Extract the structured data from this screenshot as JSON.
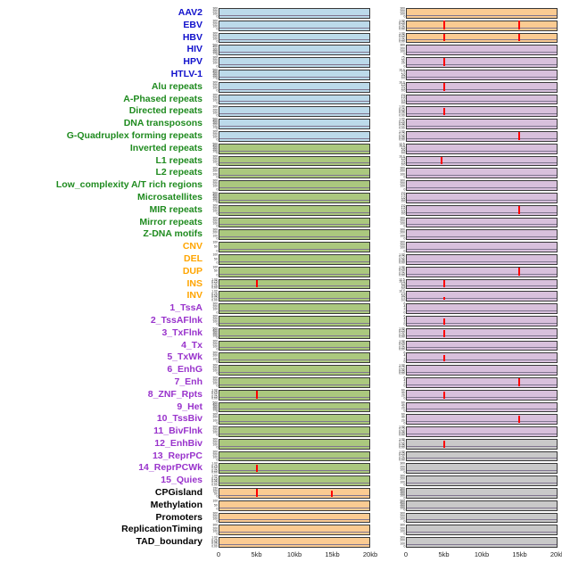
{
  "colors": {
    "label_virus": "#1111CC",
    "label_repeat": "#1F8B1F",
    "label_sv": "#FFA500",
    "label_chromatin": "#9933CC",
    "label_other": "#000000",
    "panel_blue": "#BCDAEA",
    "panel_green": "#ABC87E",
    "panel_orange": "#FBCB92",
    "panel_purple": "#D8C0DC",
    "panel_gray": "#C9C9C9",
    "spike": "#FF0000",
    "baseline": "#80758F",
    "axis_text": "#222222"
  },
  "chart_data": {
    "type": "line",
    "description": "Multi-track genomic feature profiles over a 0-20kb window; two panel columns per track; red vertical spikes mark feature enrichment peaks.",
    "x_axis": {
      "ticks": [
        "0",
        "5kb",
        "10kb",
        "15kb",
        "20kb"
      ],
      "range_kb": [
        0,
        20
      ]
    },
    "ytick_presets": {
      "c300": [
        "300",
        "200",
        "100",
        "0"
      ],
      "c500": [
        "500",
        "400",
        "300",
        "200",
        "100",
        "0"
      ],
      "c150": [
        "150",
        "100",
        "50",
        "0"
      ],
      "c100": [
        "100",
        "50",
        "0"
      ],
      "c75": [
        "75",
        "50",
        "25",
        "0"
      ],
      "c60": [
        "60",
        "40",
        "20",
        "0"
      ],
      "c6": [
        "6",
        "4",
        "2",
        "0"
      ],
      "f1": [
        "1.00",
        "0.75",
        "0.50",
        "0.25",
        "0.00"
      ],
      "f10": [
        "10.0",
        "7.5",
        "5.0",
        "2.5",
        "0.0"
      ],
      "f12": [
        "12.5",
        "10.0",
        "7.5",
        "5.0",
        "2.5",
        "0.0"
      ],
      "f2": [
        "2.0",
        "1.5",
        "1.0",
        "0.5",
        "0.0"
      ]
    },
    "tracks": [
      {
        "label": "AAV2",
        "group": "virus",
        "left": {
          "bg": "blue",
          "yticks": "c300",
          "spikes": []
        },
        "right": {
          "bg": "orange",
          "yticks": "c300",
          "spikes": []
        }
      },
      {
        "label": "EBV",
        "group": "virus",
        "left": {
          "bg": "blue",
          "yticks": "c300",
          "spikes": []
        },
        "right": {
          "bg": "orange",
          "yticks": "f1",
          "spikes": [
            {
              "x_kb": 5,
              "h": 0.95
            },
            {
              "x_kb": 15,
              "h": 0.95
            }
          ]
        }
      },
      {
        "label": "HBV",
        "group": "virus",
        "left": {
          "bg": "blue",
          "yticks": "c300",
          "spikes": []
        },
        "right": {
          "bg": "orange",
          "yticks": "f1",
          "spikes": [
            {
              "x_kb": 5,
              "h": 0.9
            },
            {
              "x_kb": 15,
              "h": 0.9
            }
          ]
        }
      },
      {
        "label": "HIV",
        "group": "virus",
        "left": {
          "bg": "blue",
          "yticks": "c500",
          "spikes": []
        },
        "right": {
          "bg": "purple",
          "yticks": "c300",
          "spikes": []
        }
      },
      {
        "label": "HPV",
        "group": "virus",
        "left": {
          "bg": "blue",
          "yticks": "c300",
          "spikes": []
        },
        "right": {
          "bg": "purple",
          "yticks": "c75",
          "spikes": [
            {
              "x_kb": 5,
              "h": 0.9
            }
          ]
        }
      },
      {
        "label": "HTLV-1",
        "group": "virus",
        "left": {
          "bg": "blue",
          "yticks": "c500",
          "spikes": []
        },
        "right": {
          "bg": "purple",
          "yticks": "f10",
          "spikes": []
        }
      },
      {
        "label": "Alu repeats",
        "group": "repeat",
        "left": {
          "bg": "blue",
          "yticks": "c300",
          "spikes": []
        },
        "right": {
          "bg": "purple",
          "yticks": "f10",
          "spikes": [
            {
              "x_kb": 5,
              "h": 0.85
            }
          ]
        }
      },
      {
        "label": "A-Phased repeats",
        "group": "repeat",
        "left": {
          "bg": "blue",
          "yticks": "c300",
          "spikes": []
        },
        "right": {
          "bg": "purple",
          "yticks": "f2",
          "spikes": []
        }
      },
      {
        "label": "Directed repeats",
        "group": "repeat",
        "left": {
          "bg": "blue",
          "yticks": "c300",
          "spikes": []
        },
        "right": {
          "bg": "purple",
          "yticks": "f1",
          "spikes": [
            {
              "x_kb": 5,
              "h": 0.8
            }
          ]
        }
      },
      {
        "label": "DNA transposons",
        "group": "repeat",
        "left": {
          "bg": "blue",
          "yticks": "c500",
          "spikes": []
        },
        "right": {
          "bg": "purple",
          "yticks": "f1",
          "spikes": []
        }
      },
      {
        "label": "G-Quadruplex forming repeats",
        "group": "repeat",
        "left": {
          "bg": "blue",
          "yticks": "c300",
          "spikes": []
        },
        "right": {
          "bg": "purple",
          "yticks": "f1",
          "spikes": [
            {
              "x_kb": 15,
              "h": 0.9
            }
          ]
        }
      },
      {
        "label": "Inverted repeats",
        "group": "repeat",
        "left": {
          "bg": "green",
          "yticks": "c500",
          "spikes": []
        },
        "right": {
          "bg": "purple",
          "yticks": "f12",
          "spikes": []
        }
      },
      {
        "label": "L1 repeats",
        "group": "repeat",
        "left": {
          "bg": "green",
          "yticks": "c300",
          "spikes": []
        },
        "right": {
          "bg": "purple",
          "yticks": "f10",
          "spikes": [
            {
              "x_kb": 4.6,
              "h": 0.85
            }
          ]
        }
      },
      {
        "label": "L2 repeats",
        "group": "repeat",
        "left": {
          "bg": "green",
          "yticks": "c300",
          "spikes": []
        },
        "right": {
          "bg": "purple",
          "yticks": "c300",
          "spikes": []
        }
      },
      {
        "label": "Low_complexity A/T rich regions",
        "group": "repeat",
        "left": {
          "bg": "green",
          "yticks": "c300",
          "spikes": []
        },
        "right": {
          "bg": "purple",
          "yticks": "c300",
          "spikes": []
        }
      },
      {
        "label": "Microsatellites",
        "group": "repeat",
        "left": {
          "bg": "green",
          "yticks": "c500",
          "spikes": []
        },
        "right": {
          "bg": "purple",
          "yticks": "f2",
          "spikes": []
        }
      },
      {
        "label": "MIR repeats",
        "group": "repeat",
        "left": {
          "bg": "green",
          "yticks": "c300",
          "spikes": []
        },
        "right": {
          "bg": "purple",
          "yticks": "f2",
          "spikes": [
            {
              "x_kb": 15,
              "h": 0.85
            }
          ]
        }
      },
      {
        "label": "Mirror repeats",
        "group": "repeat",
        "left": {
          "bg": "green",
          "yticks": "c300",
          "spikes": []
        },
        "right": {
          "bg": "purple",
          "yticks": "c300",
          "spikes": []
        }
      },
      {
        "label": "Z-DNA motifs",
        "group": "repeat",
        "left": {
          "bg": "green",
          "yticks": "c300",
          "spikes": []
        },
        "right": {
          "bg": "purple",
          "yticks": "c300",
          "spikes": []
        }
      },
      {
        "label": "CNV",
        "group": "sv",
        "left": {
          "bg": "green",
          "yticks": "c100",
          "spikes": []
        },
        "right": {
          "bg": "purple",
          "yticks": "c300",
          "spikes": []
        }
      },
      {
        "label": "DEL",
        "group": "sv",
        "left": {
          "bg": "green",
          "yticks": "c100",
          "spikes": []
        },
        "right": {
          "bg": "purple",
          "yticks": "f1",
          "spikes": []
        }
      },
      {
        "label": "DUP",
        "group": "sv",
        "left": {
          "bg": "green",
          "yticks": "c100",
          "spikes": []
        },
        "right": {
          "bg": "purple",
          "yticks": "f1",
          "spikes": [
            {
              "x_kb": 15,
              "h": 0.9
            }
          ]
        }
      },
      {
        "label": "INS",
        "group": "sv",
        "left": {
          "bg": "green",
          "yticks": "f1",
          "spikes": [
            {
              "x_kb": 5,
              "h": 0.9
            }
          ]
        },
        "right": {
          "bg": "purple",
          "yticks": "f12",
          "spikes": [
            {
              "x_kb": 5,
              "h": 0.9
            }
          ]
        }
      },
      {
        "label": "INV",
        "group": "sv",
        "left": {
          "bg": "green",
          "yticks": "f1",
          "spikes": []
        },
        "right": {
          "bg": "purple",
          "yticks": "f10",
          "spikes": [
            {
              "x_kb": 5,
              "h": 0.35
            }
          ]
        }
      },
      {
        "label": "1_TssA",
        "group": "chromatin",
        "left": {
          "bg": "green",
          "yticks": "c300",
          "spikes": []
        },
        "right": {
          "bg": "purple",
          "yticks": "c6",
          "spikes": []
        }
      },
      {
        "label": "2_TssAFlnk",
        "group": "chromatin",
        "left": {
          "bg": "green",
          "yticks": "c300",
          "spikes": []
        },
        "right": {
          "bg": "purple",
          "yticks": "c6",
          "spikes": [
            {
              "x_kb": 5,
              "h": 0.7
            }
          ]
        }
      },
      {
        "label": "3_TxFlnk",
        "group": "chromatin",
        "left": {
          "bg": "green",
          "yticks": "c500",
          "spikes": []
        },
        "right": {
          "bg": "purple",
          "yticks": "f1",
          "spikes": [
            {
              "x_kb": 5,
              "h": 0.75
            }
          ]
        }
      },
      {
        "label": "4_Tx",
        "group": "chromatin",
        "left": {
          "bg": "green",
          "yticks": "c300",
          "spikes": []
        },
        "right": {
          "bg": "purple",
          "yticks": "f1",
          "spikes": []
        }
      },
      {
        "label": "5_TxWk",
        "group": "chromatin",
        "left": {
          "bg": "green",
          "yticks": "c300",
          "spikes": []
        },
        "right": {
          "bg": "purple",
          "yticks": "c6",
          "spikes": [
            {
              "x_kb": 5,
              "h": 0.7
            }
          ]
        }
      },
      {
        "label": "6_EnhG",
        "group": "chromatin",
        "left": {
          "bg": "green",
          "yticks": "c300",
          "spikes": []
        },
        "right": {
          "bg": "purple",
          "yticks": "f1",
          "spikes": []
        }
      },
      {
        "label": "7_Enh",
        "group": "chromatin",
        "left": {
          "bg": "green",
          "yticks": "c300",
          "spikes": []
        },
        "right": {
          "bg": "purple",
          "yticks": "c6",
          "spikes": [
            {
              "x_kb": 15,
              "h": 0.85
            }
          ]
        }
      },
      {
        "label": "8_ZNF_Rpts",
        "group": "chromatin",
        "left": {
          "bg": "green",
          "yticks": "f1",
          "spikes": [
            {
              "x_kb": 5,
              "h": 0.85
            }
          ]
        },
        "right": {
          "bg": "purple",
          "yticks": "c60",
          "spikes": [
            {
              "x_kb": 5,
              "h": 0.75
            }
          ]
        }
      },
      {
        "label": "9_Het",
        "group": "chromatin",
        "left": {
          "bg": "green",
          "yticks": "c500",
          "spikes": []
        },
        "right": {
          "bg": "purple",
          "yticks": "c60",
          "spikes": []
        }
      },
      {
        "label": "10_TssBiv",
        "group": "chromatin",
        "left": {
          "bg": "green",
          "yticks": "c300",
          "spikes": []
        },
        "right": {
          "bg": "purple",
          "yticks": "c60",
          "spikes": [
            {
              "x_kb": 15,
              "h": 0.85
            }
          ]
        }
      },
      {
        "label": "11_BivFlnk",
        "group": "chromatin",
        "left": {
          "bg": "green",
          "yticks": "c300",
          "spikes": []
        },
        "right": {
          "bg": "purple",
          "yticks": "f1",
          "spikes": []
        }
      },
      {
        "label": "12_EnhBiv",
        "group": "chromatin",
        "left": {
          "bg": "green",
          "yticks": "c300",
          "spikes": []
        },
        "right": {
          "bg": "gray",
          "yticks": "f1",
          "spikes": [
            {
              "x_kb": 5,
              "h": 0.8
            }
          ]
        }
      },
      {
        "label": "13_ReprPC",
        "group": "chromatin",
        "left": {
          "bg": "green",
          "yticks": "c300",
          "spikes": []
        },
        "right": {
          "bg": "gray",
          "yticks": "f1",
          "spikes": []
        }
      },
      {
        "label": "14_ReprPCWk",
        "group": "chromatin",
        "left": {
          "bg": "green",
          "yticks": "f1",
          "spikes": [
            {
              "x_kb": 5,
              "h": 0.85
            }
          ]
        },
        "right": {
          "bg": "gray",
          "yticks": "c300",
          "spikes": []
        }
      },
      {
        "label": "15_Quies",
        "group": "chromatin",
        "left": {
          "bg": "green",
          "yticks": "f1",
          "spikes": []
        },
        "right": {
          "bg": "gray",
          "yticks": "c300",
          "spikes": []
        }
      },
      {
        "label": "CPGisland",
        "group": "other",
        "left": {
          "bg": "orange",
          "yticks": "c150",
          "spikes": [
            {
              "x_kb": 5,
              "h": 0.9
            },
            {
              "x_kb": 15,
              "h": 0.7
            }
          ]
        },
        "right": {
          "bg": "gray",
          "yticks": "c500",
          "spikes": []
        }
      },
      {
        "label": "Methylation",
        "group": "other",
        "left": {
          "bg": "orange",
          "yticks": "c100",
          "spikes": []
        },
        "right": {
          "bg": "gray",
          "yticks": "c500",
          "spikes": []
        }
      },
      {
        "label": "Promoters",
        "group": "other",
        "left": {
          "bg": "orange",
          "yticks": "c300",
          "spikes": []
        },
        "right": {
          "bg": "gray",
          "yticks": "c300",
          "spikes": []
        }
      },
      {
        "label": "ReplicationTiming",
        "group": "other",
        "left": {
          "bg": "orange",
          "yticks": "c300",
          "spikes": []
        },
        "right": {
          "bg": "gray",
          "yticks": "c300",
          "spikes": []
        }
      },
      {
        "label": "TAD_boundary",
        "group": "other",
        "left": {
          "bg": "orange",
          "yticks": "f1",
          "spikes": []
        },
        "right": {
          "bg": "gray",
          "yticks": "c300",
          "spikes": []
        }
      }
    ]
  }
}
